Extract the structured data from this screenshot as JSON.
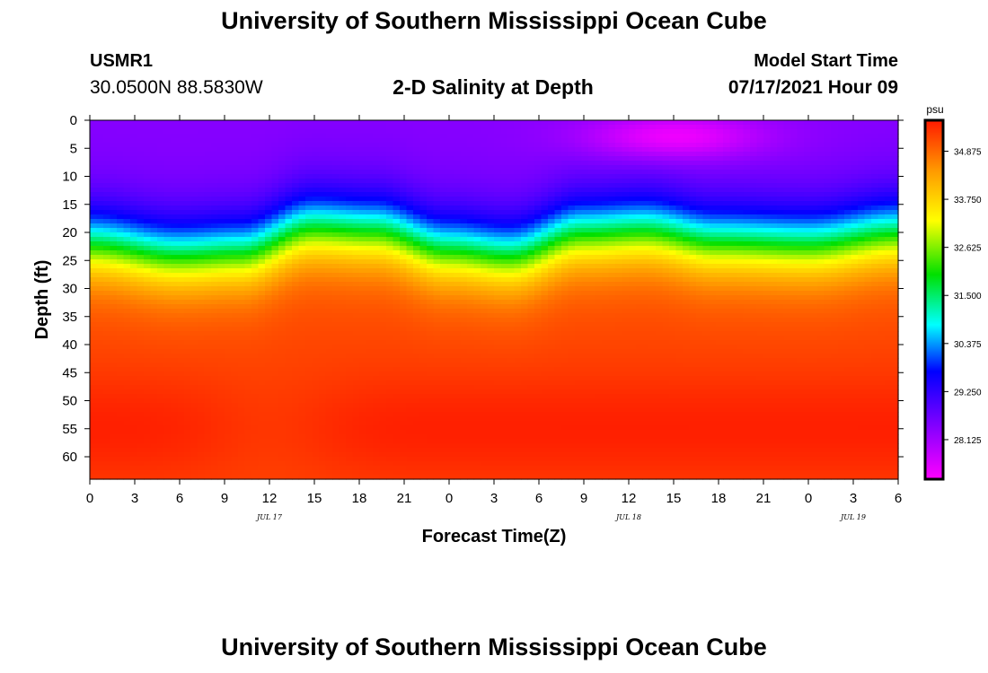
{
  "header": {
    "title": "University of Southern Mississippi Ocean Cube",
    "station_id": "USMR1",
    "coordinates": "30.0500N  88.5830W",
    "chart_title": "2-D Salinity at Depth",
    "start_label": "Model Start Time",
    "start_value": "07/17/2021 Hour 09"
  },
  "footer": {
    "title": "University of Southern Mississippi Ocean Cube"
  },
  "chart_data": {
    "type": "heatmap",
    "title": "2-D Salinity at Depth",
    "xlabel": "Forecast Time(Z)",
    "ylabel": "Depth (ft)",
    "x_ticks": [
      "0",
      "3",
      "6",
      "9",
      "12",
      "15",
      "18",
      "21",
      "0",
      "3",
      "6",
      "9",
      "12",
      "15",
      "18",
      "21",
      "0",
      "3",
      "6"
    ],
    "x_hours": [
      0,
      54
    ],
    "date_labels": [
      {
        "label": "JUL 17",
        "hour": 12
      },
      {
        "label": "JUL 18",
        "hour": 36
      },
      {
        "label": "JUL 19",
        "hour": 51
      }
    ],
    "y_ticks": [
      0,
      5,
      10,
      15,
      20,
      25,
      30,
      35,
      40,
      45,
      50,
      55,
      60
    ],
    "ylim": [
      0,
      64
    ],
    "colorbar": {
      "unit": "psu",
      "min": 27.2,
      "max": 35.6,
      "tick_labels": [
        "34.875",
        "33.750",
        "32.625",
        "31.500",
        "30.375",
        "29.250",
        "28.125"
      ],
      "tick_values": [
        34.875,
        33.75,
        32.625,
        31.5,
        30.375,
        29.25,
        28.125
      ]
    },
    "field": {
      "surface_value": 28.4,
      "bottom_value": 35.2,
      "halocline_depth_profile": {
        "hours": [
          0,
          6,
          10,
          15,
          19,
          24,
          28,
          33,
          37,
          42,
          48,
          54
        ],
        "depth_ft": [
          22,
          24,
          23.5,
          19,
          19.5,
          23,
          24,
          20,
          19.5,
          21.5,
          22,
          20
        ]
      },
      "surface_minimum": {
        "hour": 39,
        "depth_ft": 3,
        "value": 27.3
      }
    }
  }
}
